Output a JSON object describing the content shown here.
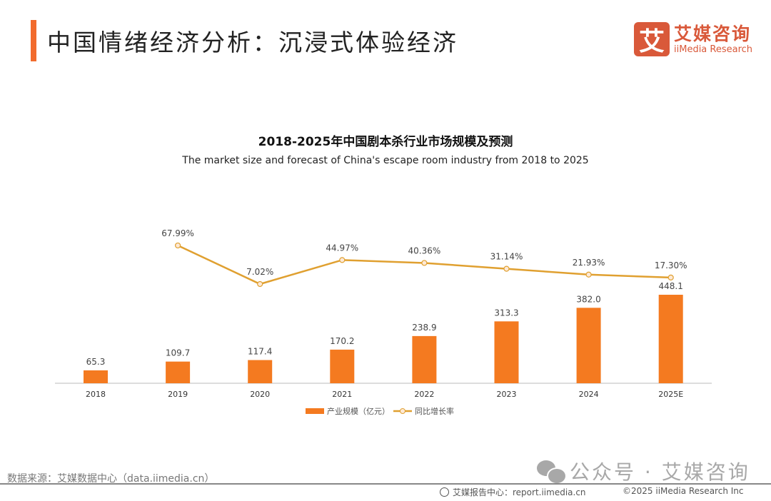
{
  "header": {
    "title": "中国情绪经济分析：沉浸式体验经济",
    "logo_mark": "艾",
    "logo_cn": "艾媒咨询",
    "logo_en": "iiMedia Research"
  },
  "colors": {
    "accent": "#f26b2d",
    "bar": "#f47a20",
    "line": "#e0a030",
    "logo": "#d9593a"
  },
  "chart_data": {
    "type": "bar+line",
    "title": "2018-2025年中国剧本杀行业市场规模及预测",
    "subtitle": "The market size and forecast of China's escape room industry from 2018 to 2025",
    "categories": [
      "2018",
      "2019",
      "2020",
      "2021",
      "2022",
      "2023",
      "2024",
      "2025E"
    ],
    "series": [
      {
        "name": "产业规模（亿元）",
        "type": "bar",
        "values": [
          65.3,
          109.7,
          117.4,
          170.2,
          238.9,
          313.3,
          382.0,
          448.1
        ],
        "labels": [
          "65.3",
          "109.7",
          "117.4",
          "170.2",
          "238.9",
          "313.3",
          "382.0",
          "448.1"
        ]
      },
      {
        "name": "同比增长率",
        "type": "line",
        "values": [
          null,
          67.99,
          7.02,
          44.97,
          40.36,
          31.14,
          21.93,
          17.3
        ],
        "labels": [
          "",
          "67.99%",
          "7.02%",
          "44.97%",
          "40.36%",
          "31.14%",
          "21.93%",
          "17.30%"
        ]
      }
    ],
    "legend": "bottom",
    "grid": false
  },
  "footer": {
    "source": "数据来源：艾媒数据中心（data.iimedia.cn）",
    "wechat": "公众号 · 艾媒咨询",
    "report": "艾媒报告中心：report.iimedia.cn",
    "copyright": "©2025  iiMedia Research  Inc"
  }
}
